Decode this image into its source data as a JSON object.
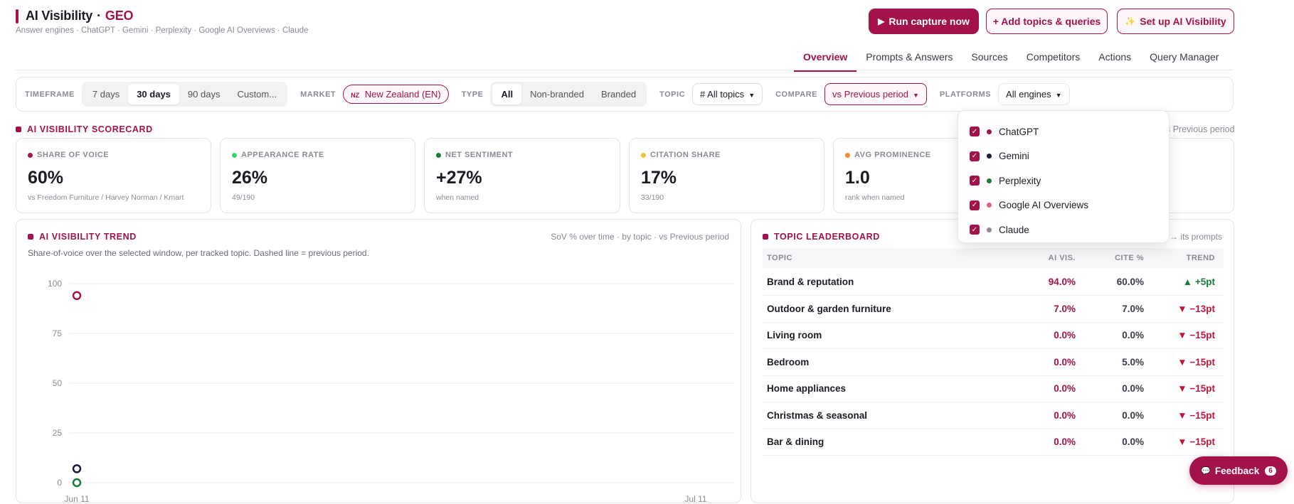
{
  "header": {
    "title": "AI Visibility",
    "sep": "·",
    "title_accent": "GEO",
    "subtitle": "Answer engines · ChatGPT · Gemini · Perplexity · Google AI Overviews · Claude"
  },
  "actions": {
    "run": "Run capture now",
    "add": "+ Add topics & queries",
    "setup": "Set up AI Visibility",
    "run_icon": "▶",
    "setup_icon": "✨"
  },
  "tabs": [
    {
      "label": "Overview",
      "active": true
    },
    {
      "label": "Prompts & Answers"
    },
    {
      "label": "Sources"
    },
    {
      "label": "Competitors"
    },
    {
      "label": "Actions"
    },
    {
      "label": "Query Manager"
    }
  ],
  "filters": {
    "timeframe_label": "TIMEFRAME",
    "timeframe": [
      "7 days",
      "30 days",
      "90 days",
      "Custom..."
    ],
    "timeframe_selected": "30 days",
    "market_label": "MARKET",
    "market_flag": "NZ",
    "market": "New Zealand (EN)",
    "type_label": "TYPE",
    "type": [
      "All",
      "Non-branded",
      "Branded"
    ],
    "type_selected": "All",
    "topic_label": "TOPIC",
    "topic": "# All topics",
    "compare_label": "COMPARE",
    "compare": "vs Previous period",
    "platforms_label": "PLATFORMS",
    "platforms": "All engines"
  },
  "scorecard": {
    "label": "AI VISIBILITY SCORECARD",
    "compare_note": "s Previous period",
    "kpis": [
      {
        "title": "SHARE OF VOICE",
        "value": "60%",
        "sub": "vs Freedom Furniture / Harvey Norman / Kmart",
        "color": "#a3124a"
      },
      {
        "title": "APPEARANCE RATE",
        "value": "26%",
        "sub": "49/190",
        "color": "#3ecf6a"
      },
      {
        "title": "NET SENTIMENT",
        "value": "+27%",
        "sub": "when named",
        "color": "#1a7a3a"
      },
      {
        "title": "CITATION SHARE",
        "value": "17%",
        "sub": "33/190",
        "color": "#f2c12e"
      },
      {
        "title": "AVG PROMINENCE",
        "value": "1.0",
        "sub": "rank when named",
        "color": "#f28a2e"
      }
    ]
  },
  "trend": {
    "label": "AI VISIBILITY TREND",
    "note": "SoV % over time · by topic · vs Previous period",
    "subtitle": "Share-of-voice over the selected window, per tracked topic. Dashed line = previous period.",
    "x_start": "Jun 11",
    "x_end": "Jul 11"
  },
  "chart_data": {
    "type": "scatter",
    "ylim": [
      0,
      100
    ],
    "yticks": [
      0,
      25,
      50,
      75,
      100
    ],
    "xticks": [
      "Jun 11",
      "Jul 11"
    ],
    "series": [
      {
        "x": [
          "Jun 11"
        ],
        "values": [
          94
        ],
        "color": "#a3124a"
      },
      {
        "x": [
          "Jun 11"
        ],
        "values": [
          7
        ],
        "color": "#1c1c3a"
      },
      {
        "x": [
          "Jun 11"
        ],
        "values": [
          0
        ],
        "color": "#1a7a3a"
      }
    ]
  },
  "leaderboard": {
    "label": "TOPIC LEADERBOARD",
    "note": "→ its prompts",
    "headers": [
      "TOPIC",
      "AI VIS.",
      "CITE %",
      "TREND"
    ],
    "rows": [
      {
        "topic": "Brand & reputation",
        "vis": "94.0%",
        "cite": "60.0%",
        "trend": "▲ +5pt",
        "dir": "up"
      },
      {
        "topic": "Outdoor & garden furniture",
        "vis": "7.0%",
        "cite": "7.0%",
        "trend": "▼ −13pt",
        "dir": "down"
      },
      {
        "topic": "Living room",
        "vis": "0.0%",
        "cite": "0.0%",
        "trend": "▼ −15pt",
        "dir": "down"
      },
      {
        "topic": "Bedroom",
        "vis": "0.0%",
        "cite": "5.0%",
        "trend": "▼ −15pt",
        "dir": "down"
      },
      {
        "topic": "Home appliances",
        "vis": "0.0%",
        "cite": "0.0%",
        "trend": "▼ −15pt",
        "dir": "down"
      },
      {
        "topic": "Christmas & seasonal",
        "vis": "0.0%",
        "cite": "0.0%",
        "trend": "▼ −15pt",
        "dir": "down"
      },
      {
        "topic": "Bar & dining",
        "vis": "0.0%",
        "cite": "0.0%",
        "trend": "▼ −15pt",
        "dir": "down"
      }
    ]
  },
  "platform_menu": [
    {
      "label": "ChatGPT",
      "color": "#a3124a",
      "checked": true
    },
    {
      "label": "Gemini",
      "color": "#1c1c3a",
      "checked": true
    },
    {
      "label": "Perplexity",
      "color": "#1a7a3a",
      "checked": true
    },
    {
      "label": "Google AI Overviews",
      "color": "#e0607e",
      "checked": true
    },
    {
      "label": "Claude",
      "color": "#8a8a8a",
      "checked": true
    }
  ],
  "feedback": {
    "label": "Feedback",
    "count": "6",
    "icon": "💬"
  }
}
